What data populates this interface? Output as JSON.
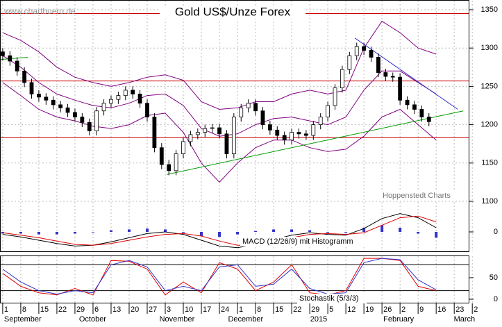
{
  "chart_data": [
    {
      "type": "candlestick",
      "title": "Gold US$/Unze Forex",
      "watermark": "www.chartbuero.de",
      "source": "Hoppenstedt Charts",
      "x": [
        0,
        0.4,
        0.8,
        1.2,
        1.6,
        2,
        2.4,
        2.8,
        3.2,
        3.6,
        4,
        4.4,
        4.8,
        5.2,
        5.6,
        6,
        6.4,
        6.8,
        7.2,
        7.6,
        8,
        8.4,
        8.8,
        9.2,
        9.6,
        10,
        10.4,
        10.8,
        11.2,
        11.6,
        12,
        12.4,
        12.8,
        13.2,
        13.6,
        14,
        14.4,
        14.8,
        15.2,
        15.6,
        16,
        16.4,
        16.8,
        17.2,
        17.6,
        18,
        18.4,
        18.8,
        19.2,
        19.6,
        20,
        20.4,
        20.8,
        21.2,
        21.6,
        22,
        22.4,
        22.8,
        23.2,
        23.6
      ],
      "open": [
        1295,
        1290,
        1283,
        1270,
        1255,
        1240,
        1236,
        1232,
        1226,
        1222,
        1216,
        1210,
        1203,
        1192,
        1218,
        1228,
        1233,
        1238,
        1245,
        1240,
        1228,
        1210,
        1170,
        1148,
        1140,
        1162,
        1178,
        1187,
        1190,
        1195,
        1196,
        1188,
        1162,
        1210,
        1222,
        1228,
        1218,
        1200,
        1193,
        1186,
        1180,
        1190,
        1188,
        1186,
        1200,
        1210,
        1225,
        1248,
        1272,
        1290,
        1302,
        1297,
        1288,
        1268,
        1263,
        1262,
        1232,
        1226,
        1220,
        1210
      ],
      "high": [
        1300,
        1296,
        1288,
        1275,
        1260,
        1245,
        1241,
        1237,
        1231,
        1227,
        1221,
        1215,
        1208,
        1223,
        1233,
        1238,
        1243,
        1250,
        1250,
        1245,
        1233,
        1215,
        1176,
        1154,
        1167,
        1183,
        1192,
        1195,
        1200,
        1201,
        1201,
        1193,
        1215,
        1227,
        1233,
        1233,
        1223,
        1205,
        1198,
        1191,
        1195,
        1195,
        1193,
        1205,
        1215,
        1230,
        1253,
        1277,
        1295,
        1307,
        1307,
        1302,
        1293,
        1273,
        1268,
        1267,
        1237,
        1231,
        1225,
        1215
      ],
      "low": [
        1284,
        1277,
        1264,
        1249,
        1234,
        1230,
        1226,
        1220,
        1216,
        1210,
        1204,
        1197,
        1186,
        1186,
        1212,
        1222,
        1227,
        1232,
        1234,
        1222,
        1204,
        1164,
        1142,
        1134,
        1134,
        1156,
        1172,
        1181,
        1184,
        1189,
        1182,
        1156,
        1156,
        1204,
        1216,
        1212,
        1194,
        1187,
        1180,
        1174,
        1174,
        1182,
        1180,
        1180,
        1194,
        1204,
        1219,
        1242,
        1266,
        1284,
        1291,
        1282,
        1262,
        1257,
        1256,
        1226,
        1220,
        1214,
        1204,
        1198
      ],
      "close": [
        1290,
        1283,
        1270,
        1255,
        1240,
        1236,
        1232,
        1226,
        1222,
        1216,
        1210,
        1203,
        1192,
        1218,
        1228,
        1233,
        1238,
        1245,
        1240,
        1228,
        1210,
        1170,
        1148,
        1140,
        1162,
        1178,
        1187,
        1190,
        1195,
        1196,
        1188,
        1162,
        1210,
        1222,
        1228,
        1218,
        1200,
        1193,
        1186,
        1180,
        1190,
        1188,
        1186,
        1200,
        1210,
        1225,
        1248,
        1272,
        1290,
        1302,
        1297,
        1288,
        1268,
        1263,
        1262,
        1232,
        1226,
        1220,
        1210,
        1204
      ],
      "band_x": [
        0,
        1,
        2,
        3,
        4,
        5,
        6,
        7,
        8,
        9,
        10,
        11,
        12,
        13,
        14,
        15,
        16,
        17,
        18,
        19,
        20,
        21,
        22,
        23,
        24
      ],
      "bands": [
        {
          "name": "upper",
          "color": "#800080",
          "values": [
            1320,
            1310,
            1295,
            1275,
            1262,
            1255,
            1250,
            1255,
            1262,
            1265,
            1258,
            1230,
            1220,
            1222,
            1230,
            1230,
            1240,
            1245,
            1240,
            1245,
            1300,
            1335,
            1320,
            1300,
            1292
          ]
        },
        {
          "name": "middle",
          "color": "#800080",
          "values": [
            1290,
            1275,
            1255,
            1240,
            1232,
            1225,
            1222,
            1228,
            1238,
            1240,
            1225,
            1195,
            1185,
            1188,
            1200,
            1208,
            1210,
            1205,
            1200,
            1210,
            1245,
            1270,
            1270,
            1255,
            1240
          ]
        },
        {
          "name": "lower",
          "color": "#800080",
          "values": [
            1255,
            1238,
            1220,
            1210,
            1205,
            1198,
            1195,
            1200,
            1212,
            1215,
            1190,
            1150,
            1125,
            1150,
            1170,
            1180,
            1180,
            1170,
            1165,
            1168,
            1185,
            1210,
            1220,
            1200,
            1180
          ]
        }
      ],
      "levels": [
        1345,
        1257,
        1183
      ],
      "level_color": "#cc0000",
      "trendlines": [
        {
          "color": "#009900",
          "points": [
            [
              9.08,
              1135
            ],
            [
              25.5,
              1218
            ]
          ]
        },
        {
          "color": "#3333cc",
          "points": [
            [
              19.5,
              1313
            ],
            [
              25.2,
              1220
            ]
          ]
        },
        {
          "color": "#009900",
          "points": [
            [
              -0.15,
              1285
            ],
            [
              1.4,
              1288
            ]
          ]
        }
      ],
      "xlim": [
        -0.15,
        25.8
      ],
      "ylim": [
        1100,
        1350
      ],
      "yticks": [
        1350,
        1300,
        1250,
        1200,
        1150,
        1100
      ],
      "xticks": [
        {
          "value": 0,
          "label": "1"
        },
        {
          "value": 1,
          "label": "8"
        },
        {
          "value": 2,
          "label": "15"
        },
        {
          "value": 3,
          "label": "22"
        },
        {
          "value": 4,
          "label": "29"
        },
        {
          "value": 5,
          "label": "6"
        },
        {
          "value": 6,
          "label": "13"
        },
        {
          "value": 7,
          "label": "20"
        },
        {
          "value": 8,
          "label": "27"
        },
        {
          "value": 9,
          "label": "3"
        },
        {
          "value": 10,
          "label": "10"
        },
        {
          "value": 11,
          "label": "17"
        },
        {
          "value": 12,
          "label": "24"
        },
        {
          "value": 13,
          "label": "1"
        },
        {
          "value": 14,
          "label": "8"
        },
        {
          "value": 15,
          "label": "15"
        },
        {
          "value": 16,
          "label": "22"
        },
        {
          "value": 17,
          "label": "29"
        },
        {
          "value": 18,
          "label": "5"
        },
        {
          "value": 19,
          "label": "12"
        },
        {
          "value": 20,
          "label": "19"
        },
        {
          "value": 21,
          "label": "26"
        },
        {
          "value": 22,
          "label": "2"
        },
        {
          "value": 23,
          "label": "9"
        },
        {
          "value": 24,
          "label": "16"
        },
        {
          "value": 25,
          "label": "23"
        },
        {
          "value": 26,
          "label": "2"
        }
      ],
      "months": [
        {
          "value": 0,
          "label": "September"
        },
        {
          "value": 4.15,
          "label": "October"
        },
        {
          "value": 8.6,
          "label": "November"
        },
        {
          "value": 12.4,
          "label": "December"
        },
        {
          "value": 16.95,
          "label": "2015"
        },
        {
          "value": 21,
          "label": "February"
        },
        {
          "value": 24.9,
          "label": "March"
        }
      ],
      "grid": true
    },
    {
      "type": "macd",
      "label": "MACD (12/26/9) mit Histogramm",
      "x": [
        0,
        1,
        2,
        3,
        4,
        5,
        6,
        7,
        8,
        9,
        10,
        11,
        12,
        13,
        14,
        15,
        16,
        17,
        18,
        19,
        20,
        21,
        22,
        23,
        24
      ],
      "series": [
        {
          "name": "macd",
          "color": "#000000",
          "values": [
            -3,
            -6,
            -10,
            -14,
            -17,
            -16,
            -12,
            -7,
            -2,
            0,
            -3,
            -10,
            -17,
            -19,
            -15,
            -9,
            -4,
            -1,
            -3,
            -4,
            4,
            16,
            22,
            17,
            5
          ]
        },
        {
          "name": "signal",
          "color": "#dd0000",
          "values": [
            -1,
            -4,
            -7,
            -11,
            -15,
            -16,
            -14,
            -10,
            -6,
            -3,
            -2,
            -5,
            -11,
            -16,
            -16,
            -12,
            -7,
            -3,
            -2,
            -3,
            -1,
            8,
            17,
            19,
            12
          ]
        }
      ],
      "histogram": [
        -2,
        -2,
        -3,
        -3,
        -2,
        0,
        2,
        3,
        4,
        3,
        -1,
        -5,
        -6,
        -3,
        1,
        3,
        3,
        2,
        -1,
        -1,
        5,
        8,
        5,
        -2,
        -7
      ],
      "histogram_color": "#3333cc",
      "ylim": [
        -25,
        25
      ],
      "yticks": [
        0
      ]
    },
    {
      "type": "stochastic",
      "label": "Stochastik (5/3/3)",
      "x": [
        0,
        1,
        2,
        3,
        4,
        5,
        6,
        7,
        8,
        9,
        10,
        11,
        12,
        13,
        14,
        15,
        16,
        17,
        18,
        19,
        20,
        21,
        22,
        23,
        24
      ],
      "series": [
        {
          "name": "K",
          "color": "#dd0000",
          "values": [
            60,
            30,
            15,
            10,
            25,
            10,
            90,
            88,
            70,
            10,
            40,
            15,
            85,
            70,
            20,
            40,
            80,
            15,
            10,
            20,
            95,
            95,
            90,
            30,
            20
          ]
        },
        {
          "name": "D",
          "color": "#3333cc",
          "values": [
            70,
            40,
            20,
            12,
            20,
            15,
            80,
            90,
            75,
            20,
            30,
            20,
            75,
            80,
            30,
            35,
            70,
            25,
            12,
            15,
            85,
            95,
            92,
            45,
            22
          ]
        }
      ],
      "levels": [
        80,
        20
      ],
      "ylim": [
        0,
        100
      ],
      "yticks": [
        50,
        0
      ]
    }
  ]
}
